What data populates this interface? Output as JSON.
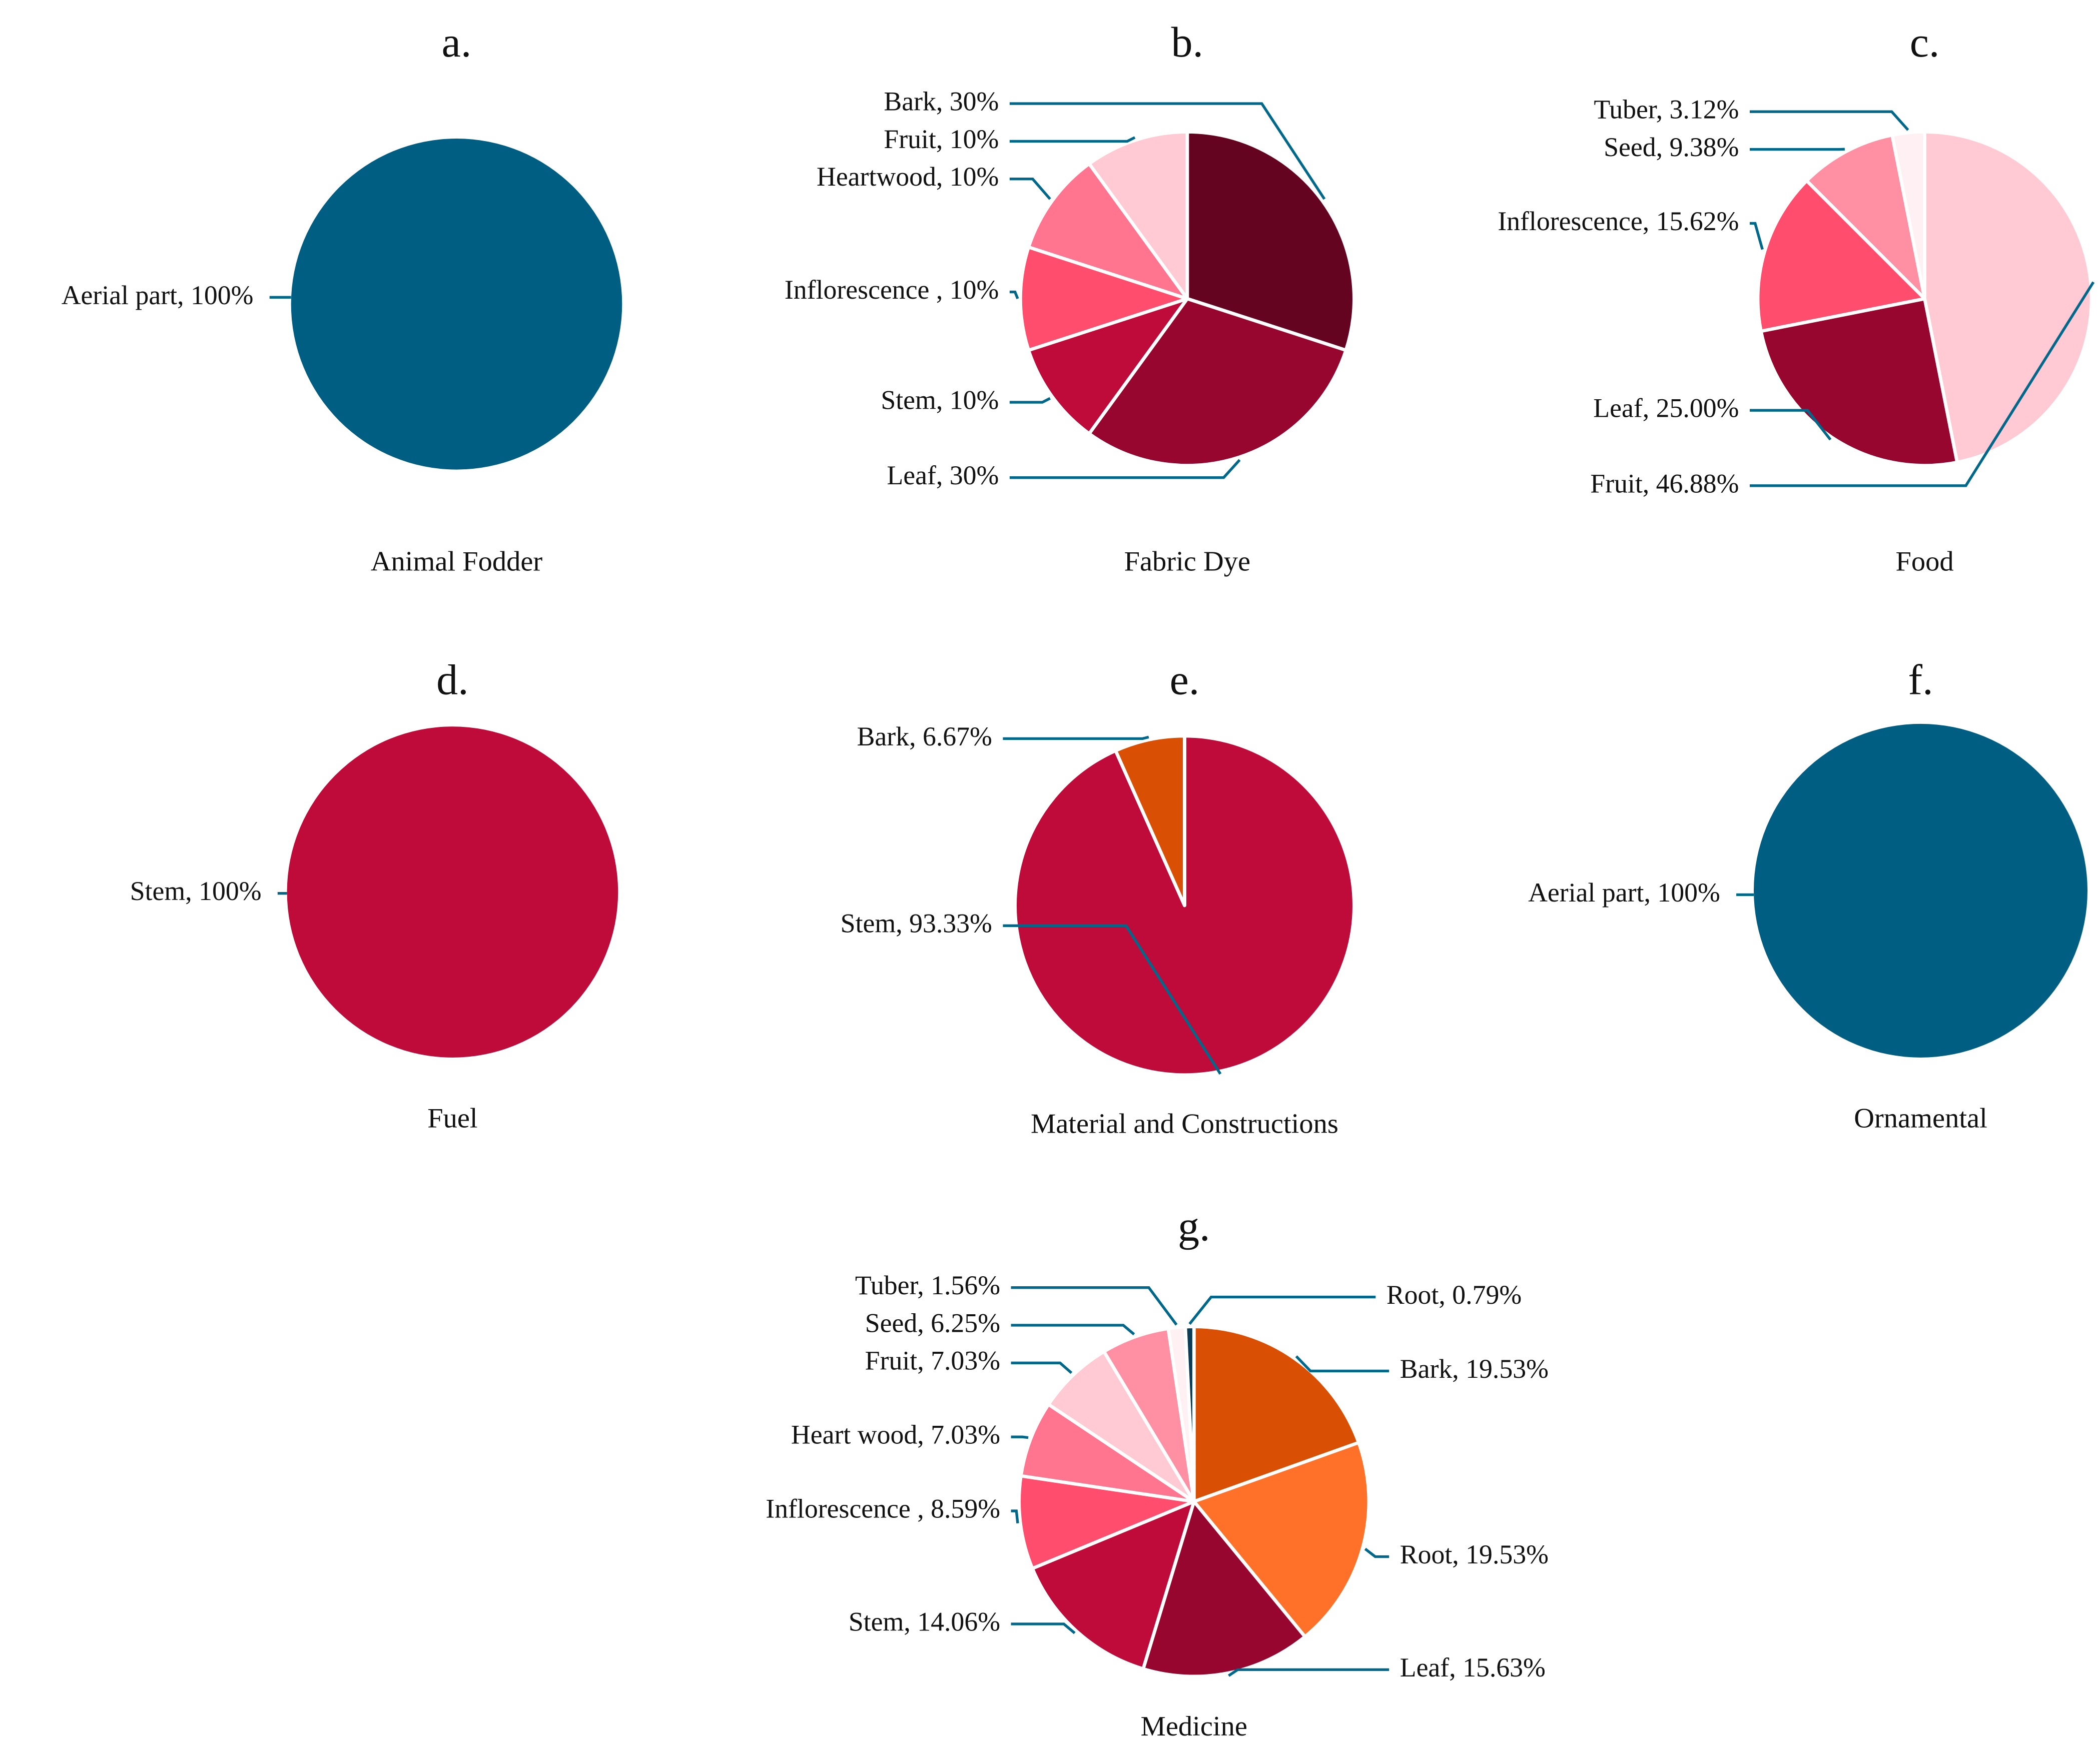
{
  "leader_color": "#00688B",
  "chart_data": [
    {
      "id": "a",
      "type": "pie",
      "title": "a.",
      "subtitle": "Animal Fodder",
      "slices": [
        {
          "label": "Aerial part, 100%",
          "category": "Aerial part",
          "value": 100,
          "color": "#005E83"
        }
      ]
    },
    {
      "id": "b",
      "type": "pie",
      "title": "b.",
      "subtitle": "Fabric Dye",
      "slices": [
        {
          "label": "Bark, 30%",
          "category": "Bark",
          "value": 30,
          "color": "#650420"
        },
        {
          "label": "Leaf, 30%",
          "category": "Leaf",
          "value": 30,
          "color": "#97062F"
        },
        {
          "label": "Stem, 10%",
          "category": "Stem",
          "value": 10,
          "color": "#BE0B3A"
        },
        {
          "label": "Inflorescence , 10%",
          "category": "Inflorescence",
          "value": 10,
          "color": "#FF4D6D"
        },
        {
          "label": "Heartwood, 10%",
          "category": "Heartwood",
          "value": 10,
          "color": "#FF758F"
        },
        {
          "label": "Fruit, 10%",
          "category": "Fruit",
          "value": 10,
          "color": "#FFCAD4"
        }
      ]
    },
    {
      "id": "c",
      "type": "pie",
      "title": "c.",
      "subtitle": "Food",
      "slices": [
        {
          "label": "Fruit, 46.88%",
          "category": "Fruit",
          "value": 46.88,
          "color": "#FFCAD4"
        },
        {
          "label": "Leaf, 25.00%",
          "category": "Leaf",
          "value": 25.0,
          "color": "#97062F"
        },
        {
          "label": "Inflorescence, 15.62%",
          "category": "Inflorescence",
          "value": 15.62,
          "color": "#FF4D6D"
        },
        {
          "label": "Seed, 9.38%",
          "category": "Seed",
          "value": 9.38,
          "color": "#FF8FA3"
        },
        {
          "label": "Tuber, 3.12%",
          "category": "Tuber",
          "value": 3.12,
          "color": "#FFF0F3"
        }
      ]
    },
    {
      "id": "d",
      "type": "pie",
      "title": "d.",
      "subtitle": "Fuel",
      "slices": [
        {
          "label": "Stem, 100%",
          "category": "Stem",
          "value": 100,
          "color": "#BE0B3A"
        }
      ]
    },
    {
      "id": "e",
      "type": "pie",
      "title": "e.",
      "subtitle": "Material and Constructions",
      "slices": [
        {
          "label": "Stem, 93.33%",
          "category": "Stem",
          "value": 93.33,
          "color": "#BE0B3A"
        },
        {
          "label": "Bark, 6.67%",
          "category": "Bark",
          "value": 6.67,
          "color": "#D94F04"
        }
      ]
    },
    {
      "id": "f",
      "type": "pie",
      "title": "f.",
      "subtitle": "Ornamental",
      "slices": [
        {
          "label": "Aerial part, 100%",
          "category": "Aerial part",
          "value": 100,
          "color": "#005E83"
        }
      ]
    },
    {
      "id": "g",
      "type": "pie",
      "title": "g.",
      "subtitle": "Medicine",
      "slices": [
        {
          "label": "Bark, 19.53%",
          "category": "Bark",
          "value": 19.53,
          "color": "#D94F04"
        },
        {
          "label": "Root, 19.53%",
          "category": "Root",
          "value": 19.53,
          "color": "#FF7129"
        },
        {
          "label": "Leaf, 15.63%",
          "category": "Leaf",
          "value": 15.63,
          "color": "#97062F"
        },
        {
          "label": "Stem, 14.06%",
          "category": "Stem",
          "value": 14.06,
          "color": "#BE0B3A"
        },
        {
          "label": "Inflorescence , 8.59%",
          "category": "Inflorescence",
          "value": 8.59,
          "color": "#FF4D6D"
        },
        {
          "label": "Heart wood, 7.03%",
          "category": "Heart wood",
          "value": 7.03,
          "color": "#FF758F"
        },
        {
          "label": "Fruit, 7.03%",
          "category": "Fruit",
          "value": 7.03,
          "color": "#FFCAD4"
        },
        {
          "label": "Seed, 6.25%",
          "category": "Seed",
          "value": 6.25,
          "color": "#FF8FA3"
        },
        {
          "label": "Tuber, 1.56%",
          "category": "Tuber",
          "value": 1.56,
          "color": "#FFF0F3"
        },
        {
          "label": "Root, 0.79%",
          "category": "Root",
          "value": 0.79,
          "color": "#0B3D59"
        }
      ]
    }
  ]
}
